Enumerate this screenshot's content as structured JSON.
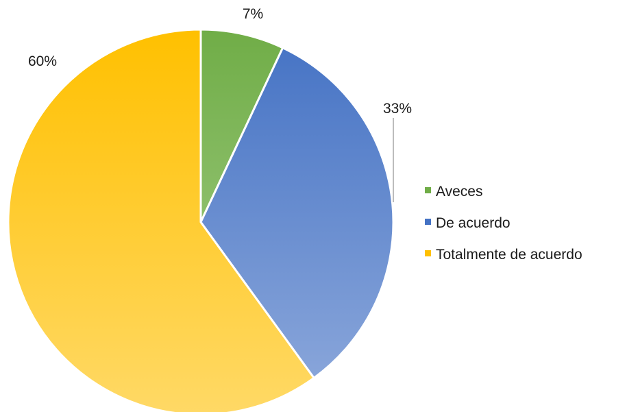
{
  "chart_data": {
    "type": "pie",
    "title": "",
    "slices": [
      {
        "label": "Aveces",
        "value": 7,
        "display": "7%",
        "color_top": "#70ad47",
        "color_bottom": "#a9d18e"
      },
      {
        "label": "De acuerdo",
        "value": 33,
        "display": "33%",
        "color_top": "#4472c4",
        "color_bottom": "#8faadc"
      },
      {
        "label": "Totalmente de acuerdo",
        "value": 60,
        "display": "60%",
        "color_top": "#ffc000",
        "color_bottom": "#ffd966"
      }
    ],
    "legend": {
      "placement": "right"
    },
    "start_angle": "12 o'clock",
    "direction": "clockwise",
    "slice_border_color": "#ffffff",
    "leader_line_color": "#a6a6a6"
  }
}
